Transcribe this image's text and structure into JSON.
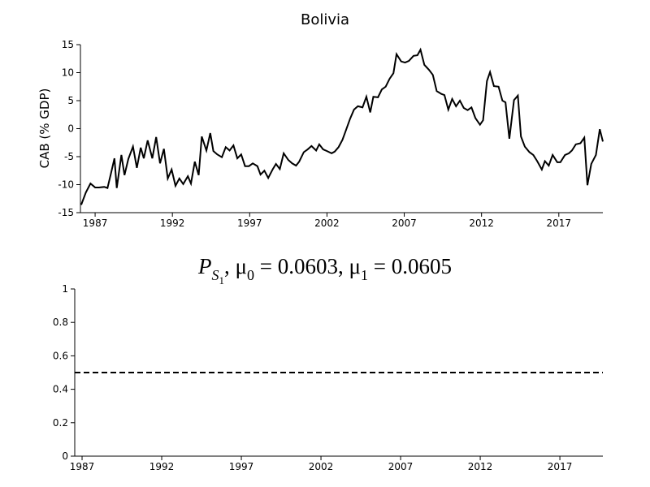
{
  "chart_data": [
    {
      "type": "line",
      "title": "Bolivia",
      "ylabel": "CAB (% GDP)",
      "xlim": [
        1986.05,
        2019.85
      ],
      "xticks": [
        1987,
        1992,
        1997,
        2002,
        2007,
        2012,
        2017
      ],
      "ylim": [
        -15,
        15
      ],
      "yticks": [
        -15,
        -10,
        -5,
        0,
        5,
        10,
        15
      ],
      "series": [
        {
          "color": "#000000",
          "x": [
            1986.1,
            1986.4,
            1986.7,
            1987.0,
            1987.25,
            1987.6,
            1987.8,
            1988.0,
            1988.25,
            1988.4,
            1988.7,
            1988.9,
            1989.15,
            1989.45,
            1989.7,
            1989.95,
            1990.15,
            1990.4,
            1990.7,
            1990.95,
            1991.2,
            1991.45,
            1991.7,
            1991.95,
            1992.2,
            1992.45,
            1992.7,
            1993.0,
            1993.2,
            1993.45,
            1993.7,
            1993.9,
            1994.2,
            1994.45,
            1994.65,
            1994.9,
            1995.2,
            1995.45,
            1995.7,
            1995.95,
            1996.2,
            1996.45,
            1996.7,
            1996.95,
            1997.2,
            1997.5,
            1997.7,
            1997.95,
            1998.2,
            1998.5,
            1998.7,
            1998.95,
            1999.2,
            1999.5,
            1999.75,
            2000.0,
            2000.2,
            2000.5,
            2000.75,
            2001.0,
            2001.3,
            2001.5,
            2001.75,
            2002.0,
            2002.3,
            2002.5,
            2002.75,
            2003.0,
            2003.2,
            2003.5,
            2003.75,
            2004.0,
            2004.3,
            2004.55,
            2004.8,
            2005.0,
            2005.3,
            2005.55,
            2005.8,
            2006.05,
            2006.3,
            2006.5,
            2006.8,
            2007.05,
            2007.3,
            2007.6,
            2007.85,
            2008.05,
            2008.3,
            2008.6,
            2008.85,
            2009.1,
            2009.4,
            2009.6,
            2009.85,
            2010.1,
            2010.35,
            2010.6,
            2010.85,
            2011.1,
            2011.35,
            2011.6,
            2011.9,
            2012.1,
            2012.35,
            2012.55,
            2012.8,
            2013.1,
            2013.35,
            2013.55,
            2013.8,
            2014.1,
            2014.35,
            2014.55,
            2014.8,
            2015.1,
            2015.35,
            2015.6,
            2015.9,
            2016.1,
            2016.35,
            2016.6,
            2016.9,
            2017.1,
            2017.4,
            2017.65,
            2017.85,
            2018.1,
            2018.4,
            2018.65,
            2018.85,
            2019.1,
            2019.4,
            2019.65,
            2019.85
          ],
          "values": [
            -13.6,
            -11.4,
            -9.8,
            -10.5,
            -10.5,
            -10.4,
            -10.6,
            -8.3,
            -5.3,
            -10.6,
            -4.7,
            -8.3,
            -5.4,
            -3.2,
            -7.0,
            -3.4,
            -5.3,
            -2.1,
            -5.3,
            -1.5,
            -6.2,
            -3.6,
            -8.9,
            -7.3,
            -10.2,
            -8.9,
            -9.9,
            -8.5,
            -9.8,
            -5.9,
            -8.3,
            -1.4,
            -3.9,
            -0.8,
            -4.0,
            -4.6,
            -5.1,
            -3.3,
            -3.9,
            -3.0,
            -5.3,
            -4.6,
            -6.7,
            -6.7,
            -6.2,
            -6.7,
            -8.2,
            -7.5,
            -8.8,
            -7.2,
            -6.3,
            -7.2,
            -4.4,
            -5.6,
            -6.2,
            -6.6,
            -5.9,
            -4.2,
            -3.7,
            -3.1,
            -3.9,
            -2.8,
            -3.7,
            -4.0,
            -4.4,
            -4.1,
            -3.3,
            -2.0,
            -0.5,
            1.8,
            3.4,
            4.0,
            3.8,
            5.7,
            2.9,
            5.7,
            5.6,
            7.0,
            7.5,
            8.9,
            9.9,
            13.3,
            12.0,
            11.8,
            12.1,
            13.0,
            13.1,
            14.1,
            11.4,
            10.5,
            9.6,
            6.7,
            6.2,
            6.0,
            3.4,
            5.3,
            4.0,
            5.0,
            3.7,
            3.3,
            3.8,
            1.9,
            0.7,
            1.5,
            8.5,
            10.1,
            7.6,
            7.5,
            5.0,
            4.7,
            -1.8,
            5.1,
            5.9,
            -1.4,
            -3.2,
            -4.2,
            -4.7,
            -5.8,
            -7.3,
            -5.8,
            -6.6,
            -4.7,
            -6.0,
            -6.0,
            -4.7,
            -4.4,
            -3.9,
            -2.8,
            -2.6,
            -1.6,
            -10.1,
            -6.3,
            -4.7,
            -0.1,
            -2.3
          ]
        }
      ]
    },
    {
      "type": "hline",
      "title": [
        "P",
        "S",
        "1",
        ", μ",
        "0",
        " = 0.0603, μ",
        "1",
        " = 0.0605"
      ],
      "xlim": [
        1986.54,
        2019.7
      ],
      "xticks": [
        1987,
        1992,
        1997,
        2002,
        2007,
        2012,
        2017
      ],
      "ylim": [
        0,
        1
      ],
      "yticks": [
        0,
        0.2,
        0.4,
        0.6,
        0.8,
        1
      ],
      "line": {
        "value": 0.5,
        "color": "#000000",
        "style": "dashed"
      }
    }
  ]
}
